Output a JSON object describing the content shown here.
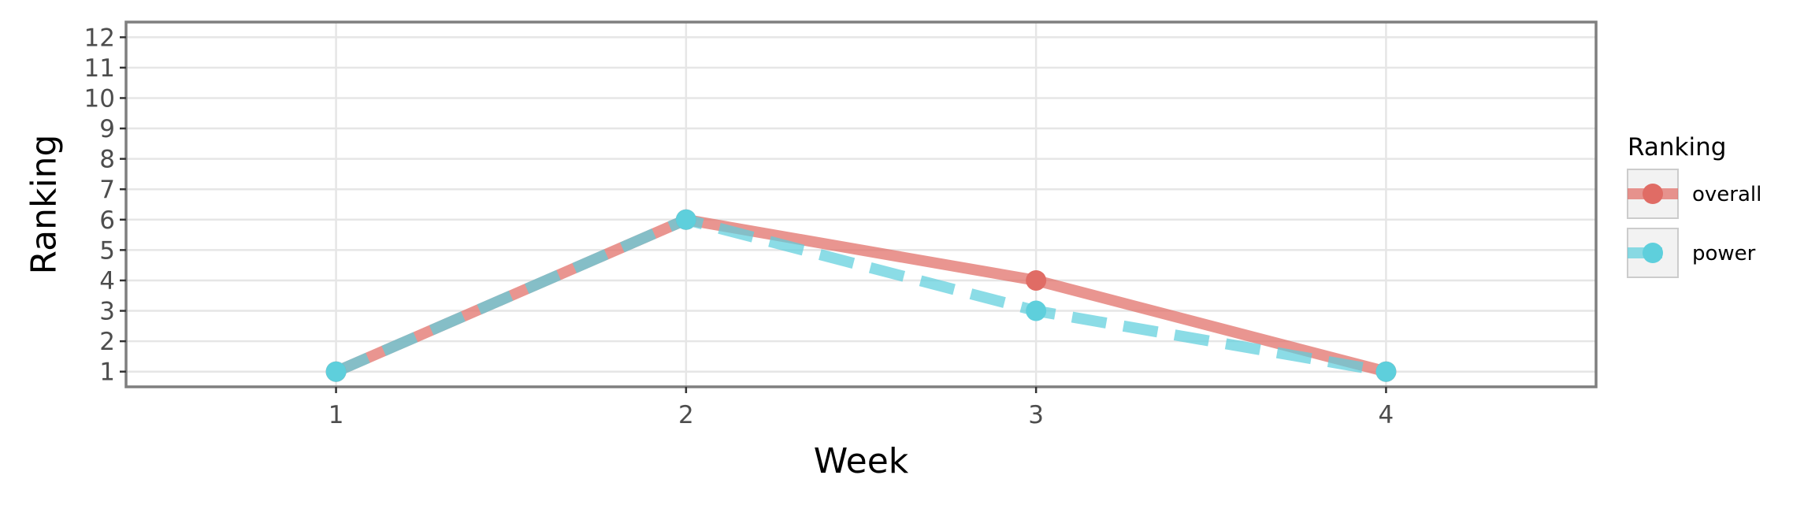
{
  "chart_data": {
    "type": "line",
    "title": "",
    "xlabel": "Week",
    "ylabel": "Ranking",
    "x": [
      1,
      2,
      3,
      4
    ],
    "xlim": [
      0.4,
      4.6
    ],
    "ylim": [
      12.5,
      0.5
    ],
    "y_reversed": true,
    "x_ticks": [
      1,
      2,
      3,
      4
    ],
    "y_ticks": [
      1,
      2,
      3,
      4,
      5,
      6,
      7,
      8,
      9,
      10,
      11,
      12
    ],
    "grid": true,
    "legend_position": "right",
    "legend_title": "Ranking",
    "series": [
      {
        "name": "overall",
        "values": [
          1,
          6,
          4,
          1
        ],
        "color": "#e06c65",
        "line_style": "solid"
      },
      {
        "name": "power",
        "values": [
          1,
          6,
          3,
          1
        ],
        "color": "#5ecfdc",
        "line_style": "dashed"
      }
    ]
  }
}
